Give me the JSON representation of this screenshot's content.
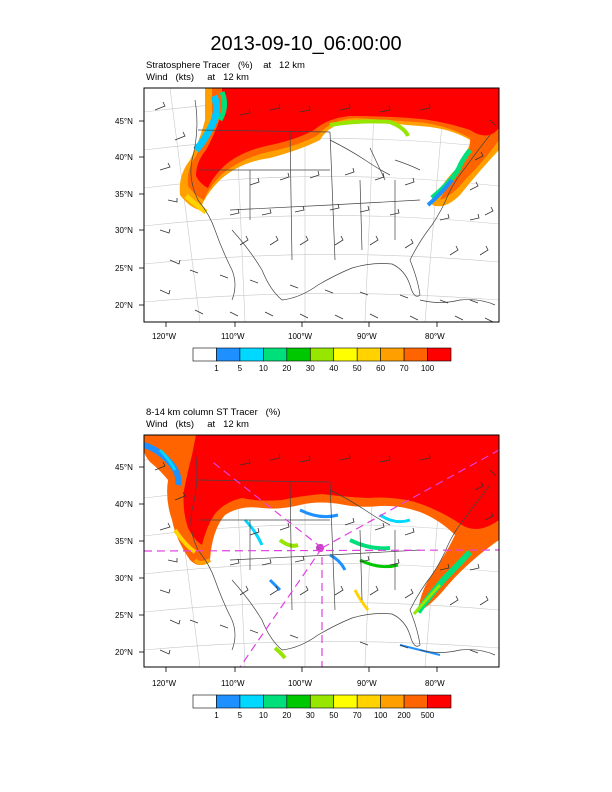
{
  "title": "2013-09-10_06:00:00",
  "panels": [
    {
      "line1": "Stratosphere Tracer   (%)    at   12 km",
      "line2": "Wind   (kts)     at   12 km",
      "lat_labels": [
        "45°N",
        "40°N",
        "35°N",
        "30°N",
        "25°N",
        "20°N"
      ],
      "lon_labels": [
        "120°W",
        "110°W",
        "100°W",
        "90°W",
        "80°W"
      ],
      "colorbar_labels": [
        "1",
        "5",
        "10",
        "20",
        "30",
        "40",
        "50",
        "60",
        "70",
        "100"
      ]
    },
    {
      "line1": "8-14 km column ST Tracer   (%)",
      "line2": "Wind   (kts)     at   12 km",
      "lat_labels": [
        "45°N",
        "40°N",
        "35°N",
        "30°N",
        "25°N",
        "20°N"
      ],
      "lon_labels": [
        "120°W",
        "110°W",
        "100°W",
        "90°W",
        "80°W"
      ],
      "colorbar_labels": [
        "1",
        "5",
        "10",
        "20",
        "30",
        "50",
        "70",
        "100",
        "200",
        "500"
      ]
    }
  ],
  "colorbar_colors": [
    "#ffffff",
    "#1e90ff",
    "#00d8ff",
    "#00e07a",
    "#00c800",
    "#96e600",
    "#ffff00",
    "#ffd200",
    "#ffa000",
    "#ff6400",
    "#ff0000"
  ],
  "map_colors": {
    "land_line": "#444444",
    "grid": "#c8c8c8",
    "barb": "#333333",
    "dashed_line": "#e040e0"
  }
}
